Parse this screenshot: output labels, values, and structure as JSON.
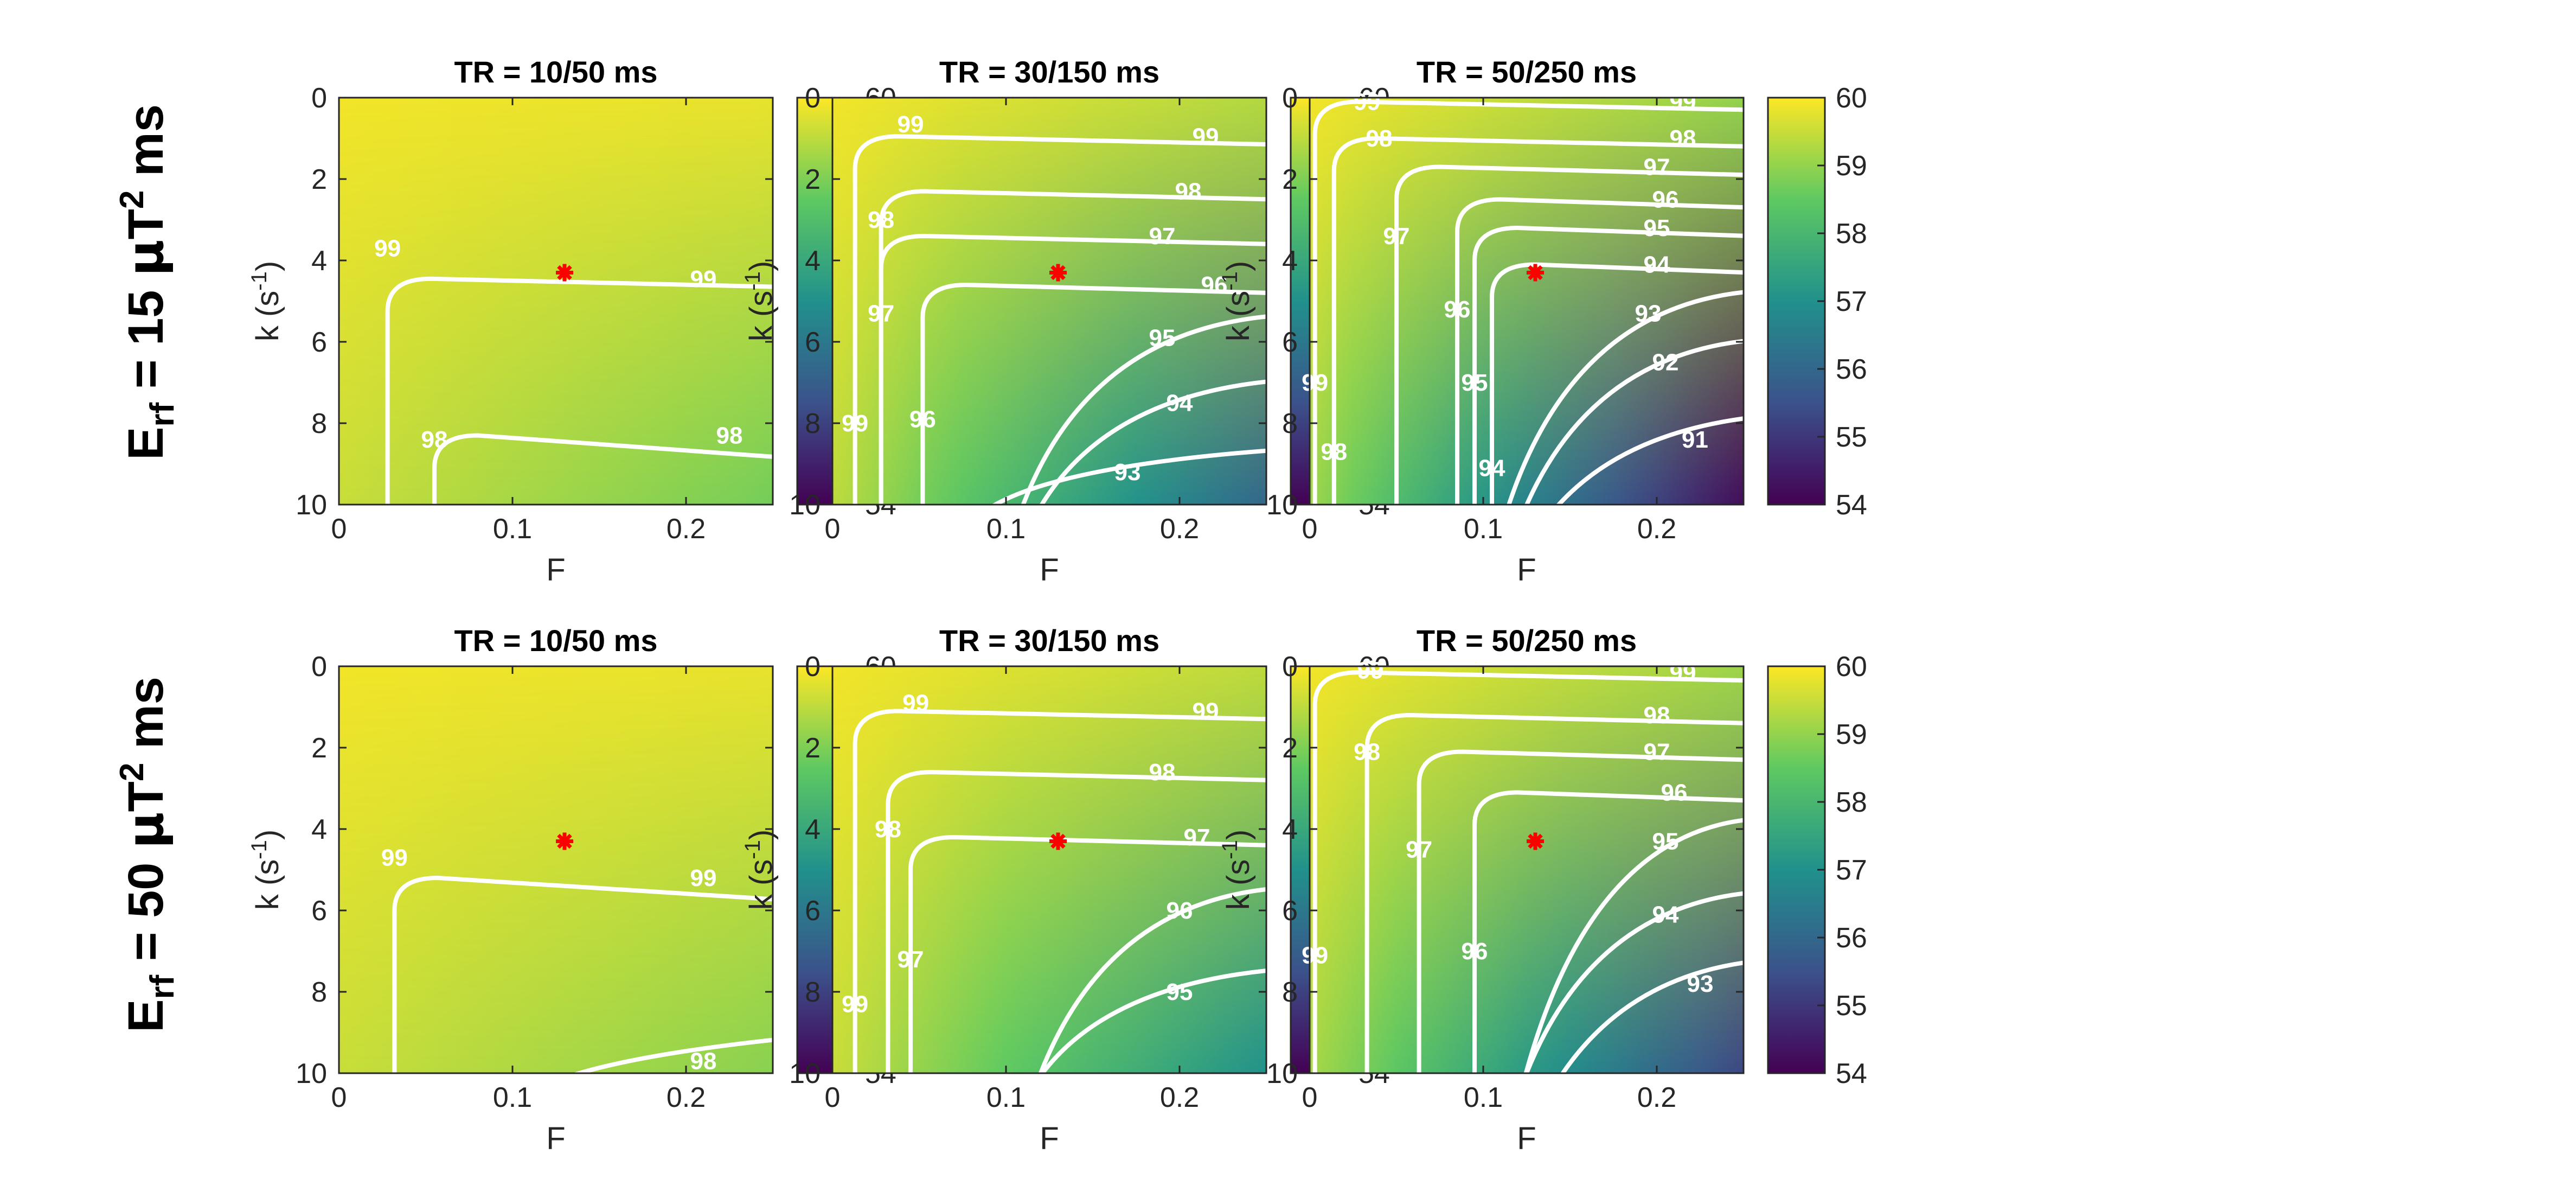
{
  "figure": {
    "row_labels": [
      {
        "main": "E",
        "sub": "rf",
        "value": " = 15 ",
        "unit_mu": "μ",
        "unit_T": "T",
        "sup": "2",
        "ms": " ms"
      },
      {
        "main": "E",
        "sub": "rf",
        "value": " = 50 ",
        "unit_mu": "μ",
        "unit_T": "T",
        "sup": "2",
        "ms": " ms"
      }
    ],
    "xlabel": "F",
    "ylabel_main": "k (s",
    "ylabel_sup": "-1",
    "ylabel_close": ")"
  },
  "colors": {
    "colormap": [
      "#440154",
      "#3b528b",
      "#21918c",
      "#5ec962",
      "#fde725"
    ],
    "contour": "#ffffff",
    "marker": "#ff0000"
  },
  "chart_data": [
    {
      "type": "heatmap",
      "title": "TR = 10/50 ms",
      "xlim": [
        0,
        0.25
      ],
      "ylim": [
        0,
        10
      ],
      "xticks": [
        0,
        0.1,
        0.2
      ],
      "xtick_labels": [
        "0",
        "0.1",
        "0.2"
      ],
      "yticks": [
        0,
        2,
        4,
        6,
        8,
        10
      ],
      "ytick_labels": [
        "0",
        "2",
        "4",
        "6",
        "8",
        "10"
      ],
      "clim": [
        54,
        60
      ],
      "colorbar_ticks": [
        60,
        59,
        58,
        57,
        56,
        55,
        54
      ],
      "colorbar_tick_labels": [
        "60",
        "59",
        "58",
        "57",
        "56",
        "55",
        "54"
      ],
      "corner_values": {
        "F0_k0": 59.9,
        "Fmax_k0": 59.8,
        "F0_kmax": 59.5,
        "Fmax_kmax": 58.7
      },
      "marker": {
        "F": 0.13,
        "k": 4.3
      },
      "contours": [
        {
          "level": "99",
          "labels": [
            {
              "F": 0.028,
              "k": 3.7
            },
            {
              "F": 0.21,
              "k": 4.45
            }
          ]
        },
        {
          "level": "98",
          "labels": [
            {
              "F": 0.055,
              "k": 8.4
            },
            {
              "F": 0.225,
              "k": 8.3
            }
          ]
        }
      ]
    },
    {
      "type": "heatmap",
      "title": "TR = 30/150 ms",
      "xlim": [
        0,
        0.25
      ],
      "ylim": [
        0,
        10
      ],
      "xticks": [
        0,
        0.1,
        0.2
      ],
      "xtick_labels": [
        "0",
        "0.1",
        "0.2"
      ],
      "yticks": [
        0,
        2,
        4,
        6,
        8,
        10
      ],
      "ytick_labels": [
        "0",
        "2",
        "4",
        "6",
        "8",
        "10"
      ],
      "clim": [
        54,
        60
      ],
      "colorbar_ticks": [
        60,
        59,
        58,
        57,
        56,
        55,
        54
      ],
      "colorbar_tick_labels": [
        "60",
        "59",
        "58",
        "57",
        "56",
        "55",
        "54"
      ],
      "corner_values": {
        "F0_k0": 59.9,
        "Fmax_k0": 59.3,
        "F0_kmax": 59.4,
        "Fmax_kmax": 56.0
      },
      "marker": {
        "F": 0.13,
        "k": 4.3
      },
      "contours": [
        {
          "level": "99",
          "labels": [
            {
              "F": 0.045,
              "k": 0.65
            },
            {
              "F": 0.215,
              "k": 0.95
            },
            {
              "F": 0.013,
              "k": 8.0
            }
          ]
        },
        {
          "level": "98",
          "labels": [
            {
              "F": 0.028,
              "k": 3.0
            },
            {
              "F": 0.205,
              "k": 2.3
            }
          ]
        },
        {
          "level": "97",
          "labels": [
            {
              "F": 0.028,
              "k": 5.3
            },
            {
              "F": 0.19,
              "k": 3.4
            }
          ]
        },
        {
          "level": "96",
          "labels": [
            {
              "F": 0.052,
              "k": 7.9
            },
            {
              "F": 0.22,
              "k": 4.6
            }
          ]
        },
        {
          "level": "95",
          "labels": [
            {
              "F": 0.19,
              "k": 5.9
            }
          ]
        },
        {
          "level": "94",
          "labels": [
            {
              "F": 0.2,
              "k": 7.5
            }
          ]
        },
        {
          "level": "93",
          "labels": [
            {
              "F": 0.17,
              "k": 9.2
            }
          ]
        }
      ]
    },
    {
      "type": "heatmap",
      "title": "TR = 50/250 ms",
      "xlim": [
        0,
        0.25
      ],
      "ylim": [
        0,
        10
      ],
      "xticks": [
        0,
        0.1,
        0.2
      ],
      "xtick_labels": [
        "0",
        "0.1",
        "0.2"
      ],
      "yticks": [
        0,
        2,
        4,
        6,
        8,
        10
      ],
      "ytick_labels": [
        "0",
        "2",
        "4",
        "6",
        "8",
        "10"
      ],
      "clim": [
        54,
        60
      ],
      "colorbar_ticks": [
        60,
        59,
        58,
        57,
        56,
        55,
        54
      ],
      "colorbar_tick_labels": [
        "60",
        "59",
        "58",
        "57",
        "56",
        "55",
        "54"
      ],
      "corner_values": {
        "F0_k0": 59.9,
        "Fmax_k0": 59.0,
        "F0_kmax": 59.1,
        "Fmax_kmax": 54.2
      },
      "marker": {
        "F": 0.13,
        "k": 4.3
      },
      "contours": [
        {
          "level": "99",
          "labels": [
            {
              "F": 0.033,
              "k": 0.1
            },
            {
              "F": 0.215,
              "k": 0.1
            },
            {
              "F": 0.003,
              "k": 7.0
            }
          ]
        },
        {
          "level": "98",
          "labels": [
            {
              "F": 0.04,
              "k": 1.0
            },
            {
              "F": 0.215,
              "k": 1.0
            },
            {
              "F": 0.014,
              "k": 8.7
            }
          ]
        },
        {
          "level": "97",
          "labels": [
            {
              "F": 0.05,
              "k": 3.4
            },
            {
              "F": 0.2,
              "k": 1.7
            }
          ]
        },
        {
          "level": "96",
          "labels": [
            {
              "F": 0.085,
              "k": 5.2
            },
            {
              "F": 0.205,
              "k": 2.5
            }
          ]
        },
        {
          "level": "95",
          "labels": [
            {
              "F": 0.095,
              "k": 7.0
            },
            {
              "F": 0.2,
              "k": 3.2
            }
          ]
        },
        {
          "level": "94",
          "labels": [
            {
              "F": 0.105,
              "k": 9.1
            },
            {
              "F": 0.2,
              "k": 4.1
            }
          ]
        },
        {
          "level": "93",
          "labels": [
            {
              "F": 0.195,
              "k": 5.3
            }
          ]
        },
        {
          "level": "92",
          "labels": [
            {
              "F": 0.205,
              "k": 6.5
            }
          ]
        },
        {
          "level": "91",
          "labels": [
            {
              "F": 0.222,
              "k": 8.4
            }
          ]
        }
      ]
    },
    {
      "type": "heatmap",
      "title": "TR = 10/50 ms",
      "xlim": [
        0,
        0.25
      ],
      "ylim": [
        0,
        10
      ],
      "xticks": [
        0,
        0.1,
        0.2
      ],
      "xtick_labels": [
        "0",
        "0.1",
        "0.2"
      ],
      "yticks": [
        0,
        2,
        4,
        6,
        8,
        10
      ],
      "ytick_labels": [
        "0",
        "2",
        "4",
        "6",
        "8",
        "10"
      ],
      "clim": [
        54,
        60
      ],
      "colorbar_ticks": [
        60,
        59,
        58,
        57,
        56,
        55,
        54
      ],
      "colorbar_tick_labels": [
        "60",
        "59",
        "58",
        "57",
        "56",
        "55",
        "54"
      ],
      "corner_values": {
        "F0_k0": 59.9,
        "Fmax_k0": 59.8,
        "F0_kmax": 59.5,
        "Fmax_kmax": 58.9
      },
      "marker": {
        "F": 0.13,
        "k": 4.3
      },
      "contours": [
        {
          "level": "99",
          "labels": [
            {
              "F": 0.032,
              "k": 4.7
            },
            {
              "F": 0.21,
              "k": 5.2
            }
          ]
        },
        {
          "level": "98",
          "labels": [
            {
              "F": 0.21,
              "k": 9.7
            }
          ]
        }
      ]
    },
    {
      "type": "heatmap",
      "title": "TR = 30/150 ms",
      "xlim": [
        0,
        0.25
      ],
      "ylim": [
        0,
        10
      ],
      "xticks": [
        0,
        0.1,
        0.2
      ],
      "xtick_labels": [
        "0",
        "0.1",
        "0.2"
      ],
      "yticks": [
        0,
        2,
        4,
        6,
        8,
        10
      ],
      "ytick_labels": [
        "0",
        "2",
        "4",
        "6",
        "8",
        "10"
      ],
      "clim": [
        54,
        60
      ],
      "colorbar_ticks": [
        60,
        59,
        58,
        57,
        56,
        55,
        54
      ],
      "colorbar_tick_labels": [
        "60",
        "59",
        "58",
        "57",
        "56",
        "55",
        "54"
      ],
      "corner_values": {
        "F0_k0": 59.9,
        "Fmax_k0": 59.4,
        "F0_kmax": 59.5,
        "Fmax_kmax": 57.0
      },
      "marker": {
        "F": 0.13,
        "k": 4.3
      },
      "contours": [
        {
          "level": "99",
          "labels": [
            {
              "F": 0.048,
              "k": 0.9
            },
            {
              "F": 0.215,
              "k": 1.1
            },
            {
              "F": 0.013,
              "k": 8.3
            }
          ]
        },
        {
          "level": "98",
          "labels": [
            {
              "F": 0.032,
              "k": 4.0
            },
            {
              "F": 0.19,
              "k": 2.6
            }
          ]
        },
        {
          "level": "97",
          "labels": [
            {
              "F": 0.045,
              "k": 7.2
            },
            {
              "F": 0.21,
              "k": 4.2
            }
          ]
        },
        {
          "level": "96",
          "labels": [
            {
              "F": 0.2,
              "k": 6.0
            }
          ]
        },
        {
          "level": "95",
          "labels": [
            {
              "F": 0.2,
              "k": 8.0
            }
          ]
        }
      ]
    },
    {
      "type": "heatmap",
      "title": "TR = 50/250 ms",
      "xlim": [
        0,
        0.25
      ],
      "ylim": [
        0,
        10
      ],
      "xticks": [
        0,
        0.1,
        0.2
      ],
      "xtick_labels": [
        "0",
        "0.1",
        "0.2"
      ],
      "yticks": [
        0,
        2,
        4,
        6,
        8,
        10
      ],
      "ytick_labels": [
        "0",
        "2",
        "4",
        "6",
        "8",
        "10"
      ],
      "clim": [
        54,
        60
      ],
      "colorbar_ticks": [
        60,
        59,
        58,
        57,
        56,
        55,
        54
      ],
      "colorbar_tick_labels": [
        "60",
        "59",
        "58",
        "57",
        "56",
        "55",
        "54"
      ],
      "corner_values": {
        "F0_k0": 59.9,
        "Fmax_k0": 59.1,
        "F0_kmax": 59.2,
        "Fmax_kmax": 55.3
      },
      "marker": {
        "F": 0.13,
        "k": 4.3
      },
      "contours": [
        {
          "level": "99",
          "labels": [
            {
              "F": 0.035,
              "k": 0.1
            },
            {
              "F": 0.215,
              "k": 0.15
            },
            {
              "F": 0.003,
              "k": 7.1
            }
          ]
        },
        {
          "level": "98",
          "labels": [
            {
              "F": 0.033,
              "k": 2.1
            },
            {
              "F": 0.2,
              "k": 1.2
            }
          ]
        },
        {
          "level": "97",
          "labels": [
            {
              "F": 0.063,
              "k": 4.5
            },
            {
              "F": 0.2,
              "k": 2.1
            }
          ]
        },
        {
          "level": "96",
          "labels": [
            {
              "F": 0.095,
              "k": 7.0
            },
            {
              "F": 0.21,
              "k": 3.1
            }
          ]
        },
        {
          "level": "95",
          "labels": [
            {
              "F": 0.205,
              "k": 4.3
            }
          ]
        },
        {
          "level": "94",
          "labels": [
            {
              "F": 0.205,
              "k": 6.1
            }
          ]
        },
        {
          "level": "93",
          "labels": [
            {
              "F": 0.225,
              "k": 7.8
            }
          ]
        }
      ]
    }
  ]
}
